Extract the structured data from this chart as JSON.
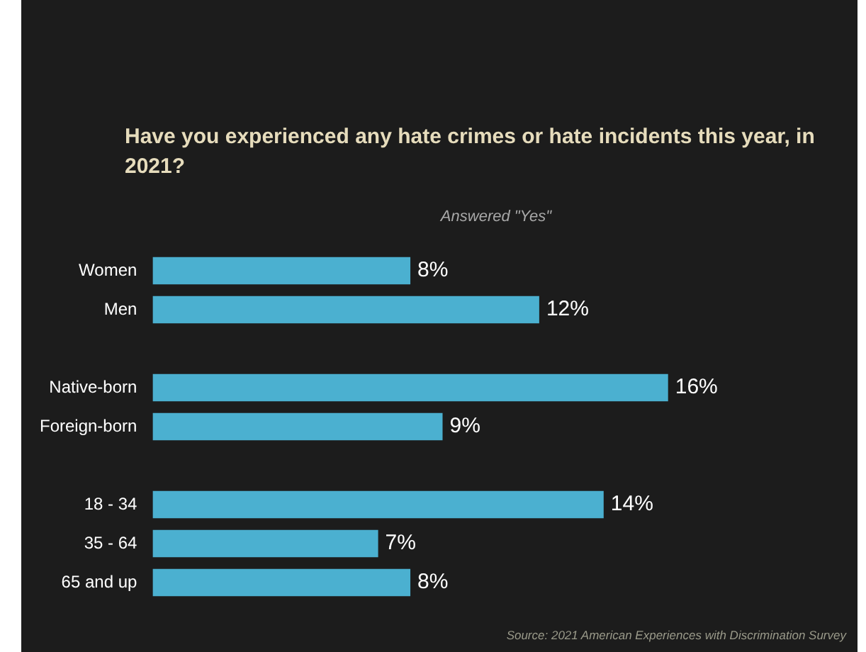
{
  "chart_data": {
    "type": "bar",
    "orientation": "horizontal",
    "title": "Have you experienced any hate crimes or hate incidents this year, in 2021?",
    "subtitle": "Answered \"Yes\"",
    "categories": [
      "Women",
      "Men",
      null,
      "Native-born",
      "Foreign-born",
      null,
      "18 - 34",
      "35 - 64",
      "65 and up"
    ],
    "values": [
      8,
      12,
      null,
      16,
      9,
      null,
      14,
      7,
      8
    ],
    "value_labels": [
      "8%",
      "12%",
      null,
      "16%",
      "9%",
      null,
      "14%",
      "7%",
      "8%"
    ],
    "color": "#4bb0d0",
    "legend": false,
    "tick_labels": "y",
    "annotations": [
      "Source: 2021 American Experiences with Discrimination Survey"
    ]
  }
}
